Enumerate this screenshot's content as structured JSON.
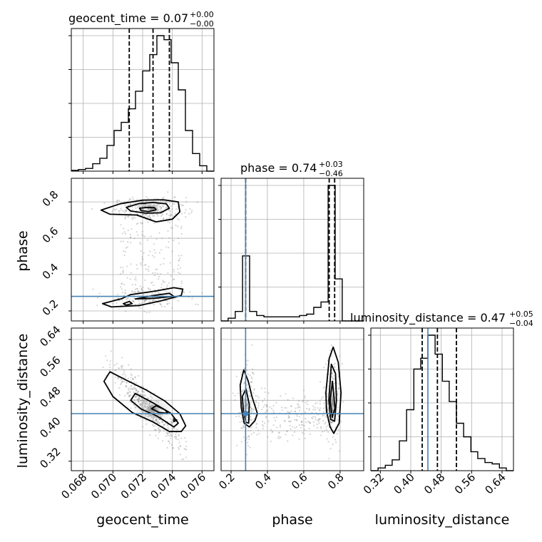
{
  "chart_data": {
    "type": "corner",
    "parameters": [
      "geocent_time",
      "phase",
      "luminosity_distance"
    ],
    "truths": {
      "phase": 0.28,
      "luminosity_distance": 0.445
    },
    "colors": {
      "hist": "#000000",
      "quantile": "#000000",
      "truth": "#4682b4",
      "grid": "#b0b0b0",
      "contour_fill": "#7f7f7f",
      "points": "#888888"
    },
    "titles": [
      {
        "param": "geocent_time",
        "label": "geocent_time = 0.07",
        "sup": "+0.00",
        "sub": "−0.00"
      },
      {
        "param": "phase",
        "label": "phase = 0.74",
        "sup": "+0.03",
        "sub": "−0.46"
      },
      {
        "param": "luminosity_distance",
        "label": "luminosity_distance = 0.47",
        "sup": "+0.05",
        "sub": "−0.04"
      }
    ],
    "axis_labels": {
      "x": [
        "geocent_time",
        "phase",
        "luminosity_distance"
      ],
      "y": [
        "phase",
        "luminosity_distance"
      ]
    },
    "ranges": {
      "geocent_time": [
        0.0672,
        0.0768
      ],
      "phase": [
        0.145,
        0.93
      ],
      "luminosity_distance": [
        0.295,
        0.67
      ]
    },
    "ticks": {
      "geocent_time": {
        "values": [
          0.068,
          0.07,
          0.072,
          0.074,
          0.076
        ],
        "labels": [
          "0.068",
          "0.070",
          "0.072",
          "0.074",
          "0.076"
        ]
      },
      "phase": {
        "values": [
          0.2,
          0.4,
          0.6,
          0.8
        ],
        "labels": [
          "0.2",
          "0.4",
          "0.6",
          "0.8"
        ]
      },
      "luminosity_distance": {
        "values": [
          0.32,
          0.4,
          0.48,
          0.56,
          0.64
        ],
        "labels": [
          "0.32",
          "0.40",
          "0.48",
          "0.56",
          "0.64"
        ]
      }
    },
    "histograms": {
      "geocent_time": {
        "edges": [
          0.0672,
          0.06768,
          0.06816,
          0.06864,
          0.06912,
          0.0696,
          0.07008,
          0.07056,
          0.07104,
          0.07152,
          0.072,
          0.07248,
          0.07296,
          0.07344,
          0.07392,
          0.0744,
          0.07488,
          0.07536,
          0.07584,
          0.07632,
          0.0768
        ],
        "counts": [
          0.006,
          0.012,
          0.02,
          0.055,
          0.095,
          0.19,
          0.3,
          0.36,
          0.46,
          0.59,
          0.74,
          0.86,
          1.0,
          0.97,
          0.8,
          0.6,
          0.3,
          0.13,
          0.04,
          0.0
        ],
        "quantiles": [
          0.0711,
          0.0727,
          0.0738
        ]
      },
      "phase": {
        "edges": [
          0.145,
          0.184,
          0.223,
          0.263,
          0.302,
          0.341,
          0.381,
          0.42,
          0.459,
          0.498,
          0.538,
          0.577,
          0.616,
          0.655,
          0.695,
          0.734,
          0.773,
          0.812,
          0.852,
          0.891,
          0.93
        ],
        "counts": [
          0.0,
          0.02,
          0.07,
          0.48,
          0.07,
          0.04,
          0.03,
          0.03,
          0.03,
          0.03,
          0.03,
          0.04,
          0.05,
          0.1,
          0.14,
          1.0,
          0.31,
          0.0,
          0.0,
          0.0
        ],
        "quantiles": [
          0.28,
          0.74,
          0.77
        ]
      },
      "luminosity_distance": {
        "edges": [
          0.295,
          0.314,
          0.333,
          0.351,
          0.37,
          0.389,
          0.408,
          0.426,
          0.445,
          0.464,
          0.483,
          0.501,
          0.52,
          0.539,
          0.558,
          0.576,
          0.595,
          0.614,
          0.633,
          0.651,
          0.67
        ],
        "counts": [
          0.0,
          0.02,
          0.04,
          0.08,
          0.22,
          0.45,
          0.75,
          0.83,
          1.0,
          0.86,
          0.66,
          0.51,
          0.35,
          0.25,
          0.14,
          0.09,
          0.06,
          0.05,
          0.02,
          0.0
        ],
        "quantiles": [
          0.43,
          0.47,
          0.52
        ]
      }
    },
    "contours_2d": [
      {
        "x": "geocent_time",
        "y": "phase",
        "contours": [
          [
            [
              0.0718,
              0.765
            ],
            [
              0.0723,
              0.77
            ],
            [
              0.0728,
              0.768
            ],
            [
              0.0729,
              0.757
            ],
            [
              0.0724,
              0.747
            ],
            [
              0.0719,
              0.752
            ]
          ],
          [
            [
              0.0709,
              0.77
            ],
            [
              0.0717,
              0.79
            ],
            [
              0.0727,
              0.797
            ],
            [
              0.0736,
              0.789
            ],
            [
              0.0738,
              0.765
            ],
            [
              0.0732,
              0.74
            ],
            [
              0.0722,
              0.738
            ],
            [
              0.0712,
              0.75
            ]
          ],
          [
            [
              0.0692,
              0.755
            ],
            [
              0.0705,
              0.79
            ],
            [
              0.072,
              0.81
            ],
            [
              0.0734,
              0.812
            ],
            [
              0.0744,
              0.8
            ],
            [
              0.0745,
              0.745
            ],
            [
              0.074,
              0.705
            ],
            [
              0.0729,
              0.69
            ],
            [
              0.0716,
              0.728
            ],
            [
              0.0698,
              0.732
            ]
          ],
          [
            [
              0.0707,
              0.24
            ],
            [
              0.0711,
              0.252
            ],
            [
              0.0713,
              0.24
            ],
            [
              0.0709,
              0.232
            ]
          ],
          [
            [
              0.0715,
              0.266
            ],
            [
              0.0728,
              0.286
            ],
            [
              0.0738,
              0.297
            ],
            [
              0.0741,
              0.28
            ],
            [
              0.0728,
              0.27
            ]
          ],
          [
            [
              0.0693,
              0.24
            ],
            [
              0.0706,
              0.268
            ],
            [
              0.0712,
              0.29
            ],
            [
              0.0729,
              0.31
            ],
            [
              0.0741,
              0.328
            ],
            [
              0.0747,
              0.32
            ],
            [
              0.0746,
              0.285
            ],
            [
              0.0733,
              0.257
            ],
            [
              0.0718,
              0.23
            ],
            [
              0.0699,
              0.222
            ]
          ]
        ],
        "fill_levels": [
          [
            0.0727,
            0.764,
            0.00035,
            0.018,
            0.85
          ],
          [
            0.0725,
            0.77,
            0.0009,
            0.035,
            0.35
          ],
          [
            0.0725,
            0.272,
            0.001,
            0.03,
            0.18
          ]
        ]
      },
      {
        "x": "geocent_time",
        "y": "luminosity_distance",
        "contours": [
          [
            [
              0.0729,
              0.466
            ],
            [
              0.0735,
              0.455
            ],
            [
              0.0737,
              0.446
            ],
            [
              0.0731,
              0.448
            ],
            [
              0.0726,
              0.458
            ]
          ],
          [
            [
              0.0741,
              0.432
            ],
            [
              0.0743,
              0.428
            ],
            [
              0.0741,
              0.424
            ]
          ],
          [
            [
              0.0715,
              0.498
            ],
            [
              0.0728,
              0.471
            ],
            [
              0.0739,
              0.446
            ],
            [
              0.0744,
              0.42
            ],
            [
              0.0741,
              0.41
            ],
            [
              0.073,
              0.438
            ],
            [
              0.0719,
              0.457
            ],
            [
              0.0712,
              0.48
            ]
          ],
          [
            [
              0.0698,
              0.555
            ],
            [
              0.0708,
              0.535
            ],
            [
              0.0722,
              0.508
            ],
            [
              0.0735,
              0.478
            ],
            [
              0.0745,
              0.445
            ],
            [
              0.0749,
              0.413
            ],
            [
              0.0746,
              0.398
            ],
            [
              0.0738,
              0.398
            ],
            [
              0.0727,
              0.423
            ],
            [
              0.0713,
              0.448
            ],
            [
              0.07,
              0.49
            ],
            [
              0.0694,
              0.53
            ]
          ]
        ],
        "fill_levels": [
          [
            0.0727,
            0.458,
            0.0005,
            0.012,
            0.85
          ],
          [
            0.0727,
            0.455,
            0.0015,
            0.04,
            0.3
          ]
        ]
      },
      {
        "x": "phase",
        "y": "luminosity_distance",
        "contours": [
          [
            [
              0.262,
              0.49
            ],
            [
              0.282,
              0.51
            ],
            [
              0.3,
              0.47
            ],
            [
              0.297,
              0.42
            ],
            [
              0.282,
              0.422
            ],
            [
              0.268,
              0.45
            ]
          ],
          [
            [
              0.25,
              0.52
            ],
            [
              0.27,
              0.56
            ],
            [
              0.295,
              0.53
            ],
            [
              0.315,
              0.49
            ],
            [
              0.345,
              0.445
            ],
            [
              0.332,
              0.427
            ],
            [
              0.3,
              0.41
            ],
            [
              0.272,
              0.42
            ],
            [
              0.256,
              0.46
            ]
          ],
          [
            [
              0.745,
              0.48
            ],
            [
              0.758,
              0.53
            ],
            [
              0.772,
              0.46
            ],
            [
              0.757,
              0.435
            ]
          ],
          [
            [
              0.738,
              0.48
            ],
            [
              0.752,
              0.575
            ],
            [
              0.775,
              0.55
            ],
            [
              0.78,
              0.48
            ],
            [
              0.77,
              0.425
            ],
            [
              0.748,
              0.43
            ]
          ],
          [
            [
              0.722,
              0.5
            ],
            [
              0.74,
              0.59
            ],
            [
              0.762,
              0.62
            ],
            [
              0.79,
              0.58
            ],
            [
              0.805,
              0.5
            ],
            [
              0.795,
              0.42
            ],
            [
              0.765,
              0.393
            ],
            [
              0.745,
              0.41
            ],
            [
              0.726,
              0.45
            ]
          ]
        ],
        "fill_levels": [
          [
            0.757,
            0.475,
            0.01,
            0.025,
            0.85
          ],
          [
            0.757,
            0.48,
            0.025,
            0.07,
            0.3
          ],
          [
            0.282,
            0.46,
            0.02,
            0.04,
            0.25
          ]
        ]
      }
    ],
    "grid": true
  }
}
